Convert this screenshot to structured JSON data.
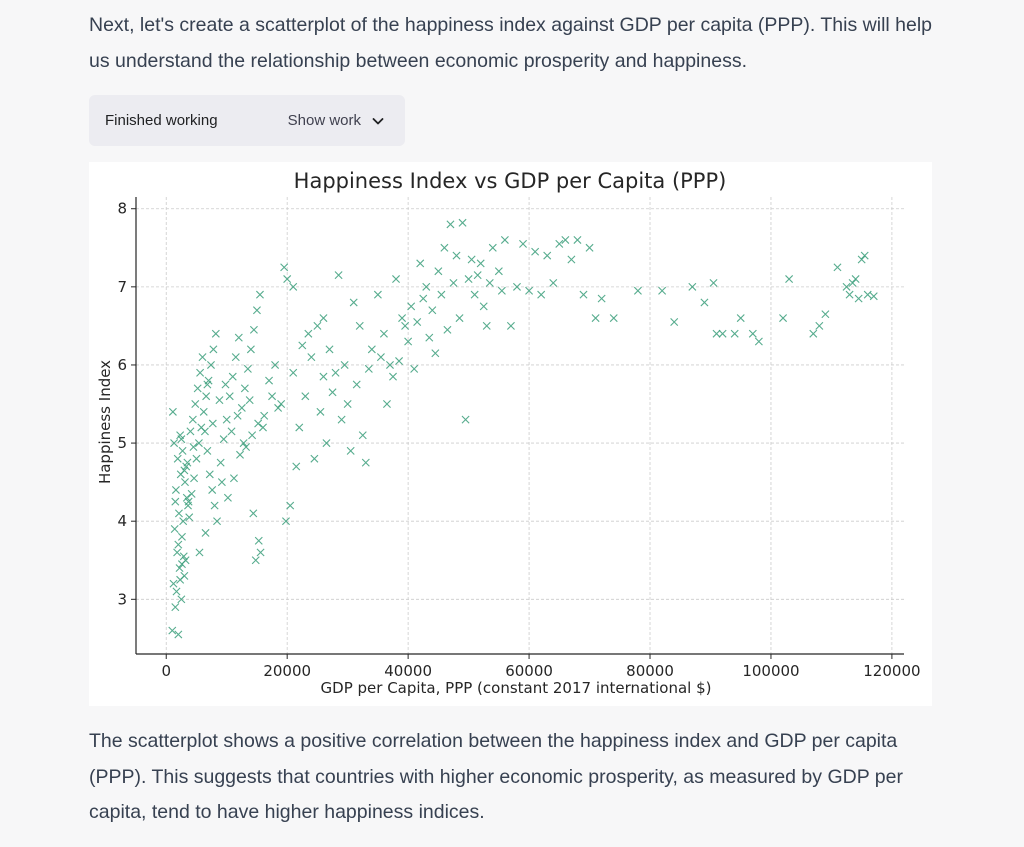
{
  "intro_text": "Next, let's create a scatterplot of the happiness index against GDP per capita (PPP). This will help us understand the relationship between economic prosperity and happiness.",
  "work_bar": {
    "status": "Finished working",
    "show_label": "Show work",
    "chevron_icon": "chevron-down-icon"
  },
  "conclusion_text": "The scatterplot shows a positive correlation between the happiness index and GDP per capita (PPP). This suggests that countries with higher economic prosperity, as measured by GDP per capita, tend to have higher happiness indices.",
  "colors": {
    "marker": "#3a9e7a",
    "grid": "#cccccc",
    "axis": "#262626",
    "background": "#ffffff"
  },
  "chart_data": {
    "type": "scatter",
    "title": "Happiness Index vs GDP per Capita (PPP)",
    "xlabel": "GDP per Capita, PPP (constant 2017 international $)",
    "ylabel": "Happiness Index",
    "xlim": [
      -5000,
      122000
    ],
    "ylim": [
      2.3,
      8.15
    ],
    "xticks": [
      0,
      20000,
      40000,
      60000,
      80000,
      100000,
      120000
    ],
    "yticks": [
      3,
      4,
      5,
      6,
      7,
      8
    ],
    "grid": true,
    "marker": "x",
    "points": [
      [
        1000,
        2.6
      ],
      [
        1500,
        2.9
      ],
      [
        2000,
        2.55
      ],
      [
        2500,
        3.0
      ],
      [
        1200,
        3.2
      ],
      [
        2200,
        3.4
      ],
      [
        3000,
        3.3
      ],
      [
        1800,
        3.6
      ],
      [
        2600,
        3.8
      ],
      [
        3200,
        3.5
      ],
      [
        1400,
        3.9
      ],
      [
        2100,
        4.1
      ],
      [
        2800,
        4.0
      ],
      [
        3400,
        4.3
      ],
      [
        1600,
        4.4
      ],
      [
        2400,
        4.6
      ],
      [
        3100,
        4.5
      ],
      [
        1900,
        4.8
      ],
      [
        2700,
        4.9
      ],
      [
        3600,
        4.2
      ],
      [
        1300,
        5.0
      ],
      [
        2300,
        5.1
      ],
      [
        3300,
        4.7
      ],
      [
        1100,
        5.4
      ],
      [
        2000,
        3.7
      ],
      [
        2900,
        3.55
      ],
      [
        3800,
        4.05
      ],
      [
        4200,
        4.35
      ],
      [
        4600,
        4.55
      ],
      [
        5000,
        4.8
      ],
      [
        5400,
        5.0
      ],
      [
        5800,
        5.2
      ],
      [
        6200,
        5.4
      ],
      [
        6600,
        5.6
      ],
      [
        7000,
        5.8
      ],
      [
        7400,
        6.0
      ],
      [
        7800,
        6.2
      ],
      [
        8200,
        6.4
      ],
      [
        4400,
        5.3
      ],
      [
        4800,
        5.5
      ],
      [
        5200,
        5.7
      ],
      [
        5600,
        5.9
      ],
      [
        6000,
        6.1
      ],
      [
        6400,
        5.15
      ],
      [
        6800,
        4.9
      ],
      [
        7200,
        4.6
      ],
      [
        7600,
        4.4
      ],
      [
        8000,
        4.2
      ],
      [
        8400,
        4.0
      ],
      [
        5500,
        3.6
      ],
      [
        6500,
        3.85
      ],
      [
        9000,
        4.75
      ],
      [
        9500,
        5.05
      ],
      [
        10000,
        5.3
      ],
      [
        10500,
        5.6
      ],
      [
        11000,
        5.85
      ],
      [
        11500,
        6.1
      ],
      [
        12000,
        6.35
      ],
      [
        12500,
        5.45
      ],
      [
        13000,
        5.7
      ],
      [
        13500,
        5.95
      ],
      [
        14000,
        6.2
      ],
      [
        14500,
        6.45
      ],
      [
        15000,
        6.7
      ],
      [
        15500,
        6.9
      ],
      [
        16000,
        5.2
      ],
      [
        9200,
        4.5
      ],
      [
        10200,
        4.3
      ],
      [
        11200,
        4.55
      ],
      [
        12200,
        4.85
      ],
      [
        13200,
        4.95
      ],
      [
        14200,
        5.1
      ],
      [
        15200,
        5.25
      ],
      [
        16200,
        5.35
      ],
      [
        14800,
        3.5
      ],
      [
        15600,
        3.6
      ],
      [
        14400,
        4.1
      ],
      [
        15300,
        3.75
      ],
      [
        17000,
        5.8
      ],
      [
        18000,
        6.0
      ],
      [
        19000,
        5.5
      ],
      [
        19500,
        7.25
      ],
      [
        20000,
        7.1
      ],
      [
        21000,
        7.0
      ],
      [
        19800,
        4.0
      ],
      [
        20500,
        4.2
      ],
      [
        21500,
        4.7
      ],
      [
        22000,
        5.2
      ],
      [
        23000,
        5.6
      ],
      [
        24000,
        6.1
      ],
      [
        25000,
        6.5
      ],
      [
        26000,
        6.6
      ],
      [
        27000,
        6.2
      ],
      [
        25500,
        5.4
      ],
      [
        24500,
        4.8
      ],
      [
        26500,
        5.0
      ],
      [
        28000,
        5.9
      ],
      [
        28500,
        7.15
      ],
      [
        29000,
        5.3
      ],
      [
        30000,
        5.5
      ],
      [
        31000,
        6.8
      ],
      [
        32000,
        6.5
      ],
      [
        30500,
        4.9
      ],
      [
        32500,
        5.1
      ],
      [
        33000,
        4.75
      ],
      [
        34000,
        6.2
      ],
      [
        35000,
        6.9
      ],
      [
        36000,
        6.4
      ],
      [
        37000,
        6.0
      ],
      [
        38000,
        7.1
      ],
      [
        39000,
        6.6
      ],
      [
        40000,
        6.3
      ],
      [
        41000,
        5.95
      ],
      [
        42000,
        7.3
      ],
      [
        43000,
        7.0
      ],
      [
        44000,
        6.7
      ],
      [
        45000,
        7.2
      ],
      [
        46000,
        7.5
      ],
      [
        47000,
        7.8
      ],
      [
        48000,
        7.4
      ],
      [
        49000,
        7.82
      ],
      [
        49500,
        5.3
      ],
      [
        50000,
        7.1
      ],
      [
        51000,
        6.9
      ],
      [
        52000,
        7.3
      ],
      [
        53000,
        6.5
      ],
      [
        54000,
        7.5
      ],
      [
        55000,
        7.2
      ],
      [
        56000,
        7.6
      ],
      [
        57000,
        6.5
      ],
      [
        58000,
        7.0
      ],
      [
        59000,
        7.55
      ],
      [
        60000,
        6.95
      ],
      [
        61000,
        7.45
      ],
      [
        62000,
        6.9
      ],
      [
        63000,
        7.4
      ],
      [
        64000,
        7.05
      ],
      [
        65000,
        7.55
      ],
      [
        66000,
        7.6
      ],
      [
        67000,
        7.35
      ],
      [
        68000,
        7.6
      ],
      [
        69000,
        6.9
      ],
      [
        70000,
        7.5
      ],
      [
        71000,
        6.6
      ],
      [
        72000,
        6.85
      ],
      [
        74000,
        6.6
      ],
      [
        78000,
        6.95
      ],
      [
        82000,
        6.95
      ],
      [
        84000,
        6.55
      ],
      [
        87000,
        7.0
      ],
      [
        89000,
        6.8
      ],
      [
        90500,
        7.05
      ],
      [
        91000,
        6.4
      ],
      [
        92000,
        6.4
      ],
      [
        94000,
        6.4
      ],
      [
        95000,
        6.6
      ],
      [
        97000,
        6.4
      ],
      [
        98000,
        6.3
      ],
      [
        102000,
        6.6
      ],
      [
        103000,
        7.1
      ],
      [
        107000,
        6.4
      ],
      [
        108000,
        6.5
      ],
      [
        109000,
        6.65
      ],
      [
        111000,
        7.25
      ],
      [
        112500,
        7.0
      ],
      [
        113000,
        6.9
      ],
      [
        114000,
        7.1
      ],
      [
        114500,
        6.85
      ],
      [
        115000,
        7.35
      ],
      [
        115500,
        7.4
      ],
      [
        116000,
        6.9
      ],
      [
        117000,
        6.88
      ],
      [
        113500,
        7.05
      ],
      [
        3500,
        4.75
      ],
      [
        2500,
        5.05
      ],
      [
        4000,
        5.15
      ],
      [
        4500,
        4.95
      ],
      [
        3700,
        4.25
      ],
      [
        6800,
        5.75
      ],
      [
        7700,
        5.25
      ],
      [
        8800,
        5.55
      ],
      [
        9800,
        5.75
      ],
      [
        10800,
        5.15
      ],
      [
        11800,
        5.35
      ],
      [
        12800,
        5.0
      ],
      [
        13800,
        5.55
      ],
      [
        17500,
        5.6
      ],
      [
        18500,
        5.45
      ],
      [
        21000,
        5.9
      ],
      [
        22500,
        6.25
      ],
      [
        23500,
        6.4
      ],
      [
        26000,
        5.85
      ],
      [
        27500,
        5.65
      ],
      [
        29500,
        6.0
      ],
      [
        31500,
        5.75
      ],
      [
        33500,
        5.95
      ],
      [
        35500,
        6.1
      ],
      [
        36500,
        5.5
      ],
      [
        37500,
        5.85
      ],
      [
        38500,
        6.05
      ],
      [
        39500,
        6.5
      ],
      [
        40500,
        6.75
      ],
      [
        41500,
        6.55
      ],
      [
        42500,
        6.85
      ],
      [
        43500,
        6.35
      ],
      [
        44500,
        6.15
      ],
      [
        45500,
        6.9
      ],
      [
        46500,
        6.45
      ],
      [
        47500,
        7.05
      ],
      [
        48500,
        6.6
      ],
      [
        50500,
        7.35
      ],
      [
        51500,
        7.15
      ],
      [
        52500,
        6.75
      ],
      [
        53500,
        7.05
      ],
      [
        55500,
        6.95
      ],
      [
        1700,
        3.1
      ],
      [
        2300,
        3.25
      ],
      [
        2600,
        3.45
      ],
      [
        1500,
        4.25
      ],
      [
        3000,
        4.65
      ]
    ]
  }
}
